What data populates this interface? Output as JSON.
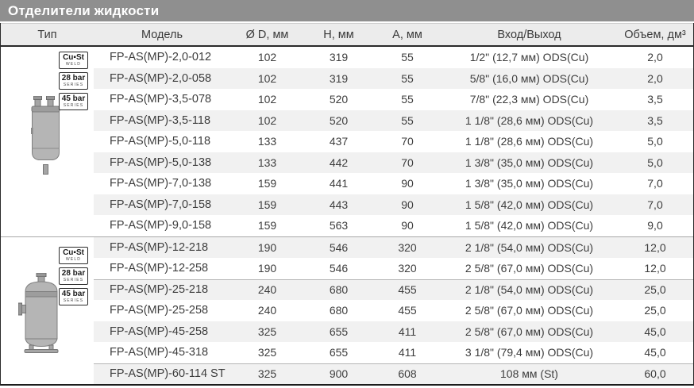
{
  "title": "Отделители жидкости",
  "columns": [
    "Тип",
    "Модель",
    "Ø D, мм",
    "H, мм",
    "A, мм",
    "Вход/Выход",
    "Объем, дм³"
  ],
  "badges": [
    {
      "line1": "Cu▪St",
      "line2": "WELD"
    },
    {
      "line1": "28 bar",
      "line2": "SERIES"
    },
    {
      "line1": "45 bar",
      "line2": "SERIES"
    }
  ],
  "colors": {
    "titlebar_bg": "#8f8f8f",
    "header_bg": "#ececec",
    "row_shade": "#f1f1f1",
    "border_dark": "#1c1c1c",
    "vessel_fill": "#b5b5b5",
    "vessel_stroke": "#7f7f7f"
  },
  "sections": [
    {
      "type_image": "vertical-liquid-separator-small",
      "rows": [
        {
          "model": "FP-AS(MP)-2,0-012",
          "d": "102",
          "h": "319",
          "a": "55",
          "io": "1/2\" (12,7 мм) ODS(Cu)",
          "vol": "2,0"
        },
        {
          "model": "FP-AS(MP)-2,0-058",
          "d": "102",
          "h": "319",
          "a": "55",
          "io": "5/8\" (16,0 мм) ODS(Cu)",
          "vol": "2,0"
        },
        {
          "model": "FP-AS(MP)-3,5-078",
          "d": "102",
          "h": "520",
          "a": "55",
          "io": "7/8\" (22,3 мм) ODS(Cu)",
          "vol": "3,5"
        },
        {
          "model": "FP-AS(MP)-3,5-118",
          "d": "102",
          "h": "520",
          "a": "55",
          "io": "1 1/8\" (28,6 мм) ODS(Cu)",
          "vol": "3,5"
        },
        {
          "model": "FP-AS(MP)-5,0-118",
          "d": "133",
          "h": "437",
          "a": "70",
          "io": "1 1/8\" (28,6 мм) ODS(Cu)",
          "vol": "5,0"
        },
        {
          "model": "FP-AS(MP)-5,0-138",
          "d": "133",
          "h": "442",
          "a": "70",
          "io": "1 3/8\" (35,0 мм) ODS(Cu)",
          "vol": "5,0"
        },
        {
          "model": "FP-AS(MP)-7,0-138",
          "d": "159",
          "h": "441",
          "a": "90",
          "io": "1 3/8\" (35,0 мм) ODS(Cu)",
          "vol": "7,0"
        },
        {
          "model": "FP-AS(MP)-7,0-158",
          "d": "159",
          "h": "443",
          "a": "90",
          "io": "1 5/8\" (42,0 мм) ODS(Cu)",
          "vol": "7,0"
        },
        {
          "model": "FP-AS(MP)-9,0-158",
          "d": "159",
          "h": "563",
          "a": "90",
          "io": "1 5/8\" (42,0 мм) ODS(Cu)",
          "vol": "9,0"
        }
      ]
    },
    {
      "type_image": "vertical-liquid-separator-large",
      "rows": [
        {
          "model": "FP-AS(MP)-12-218",
          "d": "190",
          "h": "546",
          "a": "320",
          "io": "2 1/8\" (54,0 мм) ODS(Cu)",
          "vol": "12,0"
        },
        {
          "model": "FP-AS(MP)-12-258",
          "d": "190",
          "h": "546",
          "a": "320",
          "io": "2 5/8\" (67,0 мм) ODS(Cu)",
          "vol": "12,0"
        },
        {
          "model": "FP-AS(MP)-25-218",
          "d": "240",
          "h": "680",
          "a": "455",
          "io": "2 1/8\" (54,0 мм) ODS(Cu)",
          "vol": "25,0"
        },
        {
          "model": "FP-AS(MP)-25-258",
          "d": "240",
          "h": "680",
          "a": "455",
          "io": "2 5/8\" (67,0 мм) ODS(Cu)",
          "vol": "25,0"
        },
        {
          "model": "FP-AS(MP)-45-258",
          "d": "325",
          "h": "655",
          "a": "411",
          "io": "2 5/8\" (67,0 мм) ODS(Cu)",
          "vol": "45,0"
        },
        {
          "model": "FP-AS(MP)-45-318",
          "d": "325",
          "h": "655",
          "a": "411",
          "io": "3 1/8\" (79,4 мм) ODS(Cu)",
          "vol": "45,0"
        },
        {
          "model": "FP-AS(MP)-60-114 ST",
          "d": "325",
          "h": "900",
          "a": "608",
          "io": "108 мм (St)",
          "vol": "60,0"
        }
      ]
    }
  ],
  "section2_group_separator_rows": [
    2,
    6
  ]
}
